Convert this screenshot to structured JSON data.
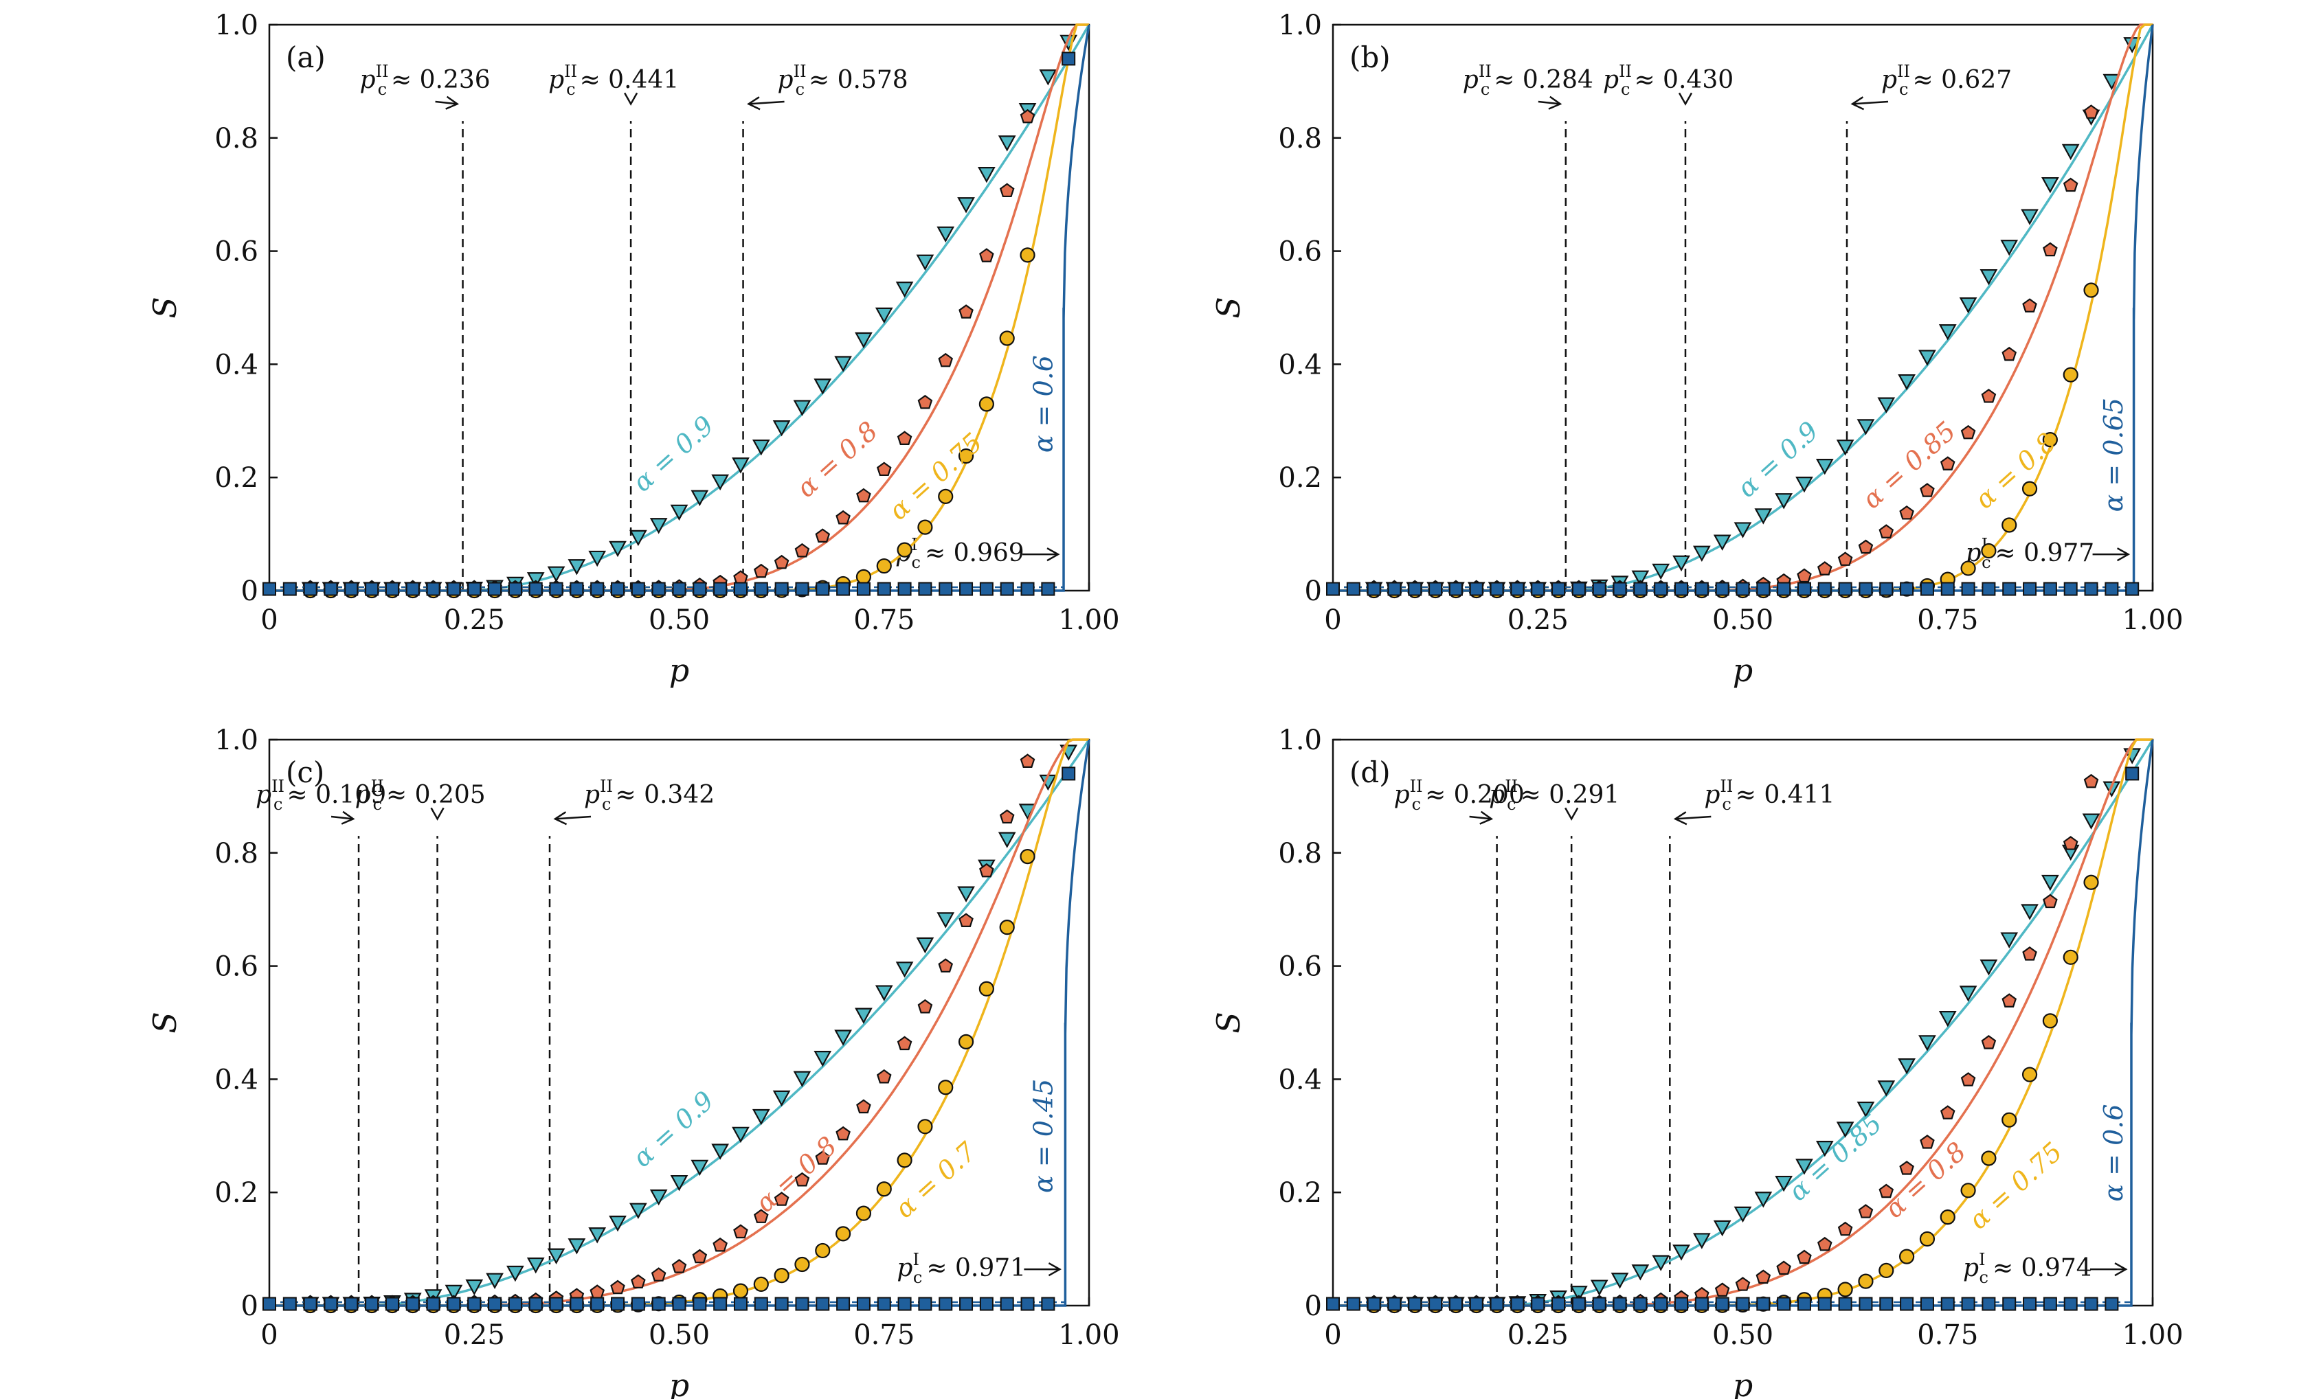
{
  "colors": {
    "s09": "#4fb8c4",
    "s08": "#e4714f",
    "s07": "#efb51c",
    "s06": "#1f5f9c",
    "marker_edge": "#111111",
    "axis": "#111111"
  },
  "chart_data": [
    {
      "type": "line",
      "panel": "(a)",
      "xlabel": "p",
      "ylabel": "S",
      "xlim": [
        0,
        1
      ],
      "ylim": [
        0,
        1
      ],
      "xticks": [
        "0",
        "0.25",
        "0.50",
        "0.75",
        "1.00"
      ],
      "yticks": [
        "0",
        "0.2",
        "0.4",
        "0.6",
        "0.8",
        "1.0"
      ],
      "thresholds": [
        {
          "label": "≈ 0.236",
          "p": 0.236
        },
        {
          "label": "≈ 0.441",
          "p": 0.441
        },
        {
          "label": "≈ 0.578",
          "p": 0.578
        }
      ],
      "first_order": {
        "label": "≈ 0.969",
        "p": 0.969
      },
      "series": [
        {
          "name": "α = 0.9",
          "alpha": 0.9,
          "marker": "triangle",
          "color_key": "s09",
          "pc": 0.236,
          "steep": 0,
          "points_start": 0.05,
          "points_end": 0.975,
          "label_p": 0.5,
          "label_s": 0.23
        },
        {
          "name": "α = 0.8",
          "alpha": 0.8,
          "marker": "pentagon",
          "color_key": "s08",
          "pc": 0.441,
          "steep": 0.6,
          "points_start": 0.05,
          "points_end": 0.93,
          "label_p": 0.7,
          "label_s": 0.22
        },
        {
          "name": "α = 0.75",
          "alpha": 0.75,
          "marker": "circle",
          "color_key": "s07",
          "pc": 0.578,
          "steep": 1.0,
          "points_start": 0.05,
          "points_end": 0.93,
          "label_p": 0.82,
          "label_s": 0.19
        },
        {
          "name": "α = 0.6",
          "alpha": 0.6,
          "marker": "square",
          "color_key": "s06",
          "pc": 0.969,
          "steep": 3,
          "points_start": 0.0,
          "points_end": 0.975,
          "label_p": 0.955,
          "label_s": 0.33
        }
      ]
    },
    {
      "type": "line",
      "panel": "(b)",
      "xlabel": "p",
      "ylabel": "S",
      "xlim": [
        0,
        1
      ],
      "ylim": [
        0,
        1
      ],
      "xticks": [
        "0",
        "0.25",
        "0.50",
        "0.75",
        "1.00"
      ],
      "yticks": [
        "0",
        "0.2",
        "0.4",
        "0.6",
        "0.8",
        "1.0"
      ],
      "thresholds": [
        {
          "label": "≈ 0.284",
          "p": 0.284
        },
        {
          "label": "≈ 0.430",
          "p": 0.43
        },
        {
          "label": "≈ 0.627",
          "p": 0.627
        }
      ],
      "first_order": {
        "label": "≈ 0.977",
        "p": 0.977
      },
      "series": [
        {
          "name": "α = 0.9",
          "alpha": 0.9,
          "marker": "triangle",
          "color_key": "s09",
          "pc": 0.284,
          "steep": 0,
          "points_start": 0.05,
          "points_end": 0.975,
          "label_p": 0.55,
          "label_s": 0.22
        },
        {
          "name": "α = 0.85",
          "alpha": 0.85,
          "marker": "pentagon",
          "color_key": "s08",
          "pc": 0.43,
          "steep": 0.6,
          "points_start": 0.05,
          "points_end": 0.93,
          "label_p": 0.71,
          "label_s": 0.21
        },
        {
          "name": "α = 0.8",
          "alpha": 0.8,
          "marker": "circle",
          "color_key": "s07",
          "pc": 0.627,
          "steep": 1.0,
          "points_start": 0.05,
          "points_end": 0.93,
          "label_p": 0.84,
          "label_s": 0.2
        },
        {
          "name": "α = 0.65",
          "alpha": 0.65,
          "marker": "square",
          "color_key": "s06",
          "pc": 0.977,
          "steep": 3,
          "points_start": 0.0,
          "points_end": 0.975,
          "label_p": 0.963,
          "label_s": 0.24
        }
      ]
    },
    {
      "type": "line",
      "panel": "(c)",
      "xlabel": "p",
      "ylabel": "S",
      "xlim": [
        0,
        1
      ],
      "ylim": [
        0,
        1
      ],
      "xticks": [
        "0",
        "0.25",
        "0.50",
        "0.75",
        "1.00"
      ],
      "yticks": [
        "0",
        "0.2",
        "0.4",
        "0.6",
        "0.8",
        "1.0"
      ],
      "thresholds": [
        {
          "label": "≈ 0.109",
          "p": 0.109
        },
        {
          "label": "≈ 0.205",
          "p": 0.205
        },
        {
          "label": "≈ 0.342",
          "p": 0.342
        }
      ],
      "first_order": {
        "label": "≈ 0.971",
        "p": 0.971
      },
      "series": [
        {
          "name": "α = 0.9",
          "alpha": 0.9,
          "marker": "triangle",
          "color_key": "s09",
          "pc": 0.109,
          "steep": 0,
          "points_start": 0.05,
          "points_end": 0.975,
          "label_p": 0.5,
          "label_s": 0.3
        },
        {
          "name": "α = 0.8",
          "alpha": 0.8,
          "marker": "pentagon",
          "color_key": "s08",
          "pc": 0.205,
          "steep": 0.6,
          "points_start": 0.05,
          "points_end": 0.93,
          "label_p": 0.65,
          "label_s": 0.22
        },
        {
          "name": "α = 0.7",
          "alpha": 0.7,
          "marker": "circle",
          "color_key": "s07",
          "pc": 0.342,
          "steep": 1.0,
          "points_start": 0.05,
          "points_end": 0.93,
          "label_p": 0.82,
          "label_s": 0.21
        },
        {
          "name": "α = 0.45",
          "alpha": 0.45,
          "marker": "square",
          "color_key": "s06",
          "pc": 0.971,
          "steep": 3,
          "points_start": 0.0,
          "points_end": 0.975,
          "label_p": 0.955,
          "label_s": 0.3
        }
      ]
    },
    {
      "type": "line",
      "panel": "(d)",
      "xlabel": "p",
      "ylabel": "S",
      "xlim": [
        0,
        1
      ],
      "ylim": [
        0,
        1
      ],
      "xticks": [
        "0",
        "0.25",
        "0.50",
        "0.75",
        "1.00"
      ],
      "yticks": [
        "0",
        "0.2",
        "0.4",
        "0.6",
        "0.8",
        "1.0"
      ],
      "thresholds": [
        {
          "label": "≈ 0.200",
          "p": 0.2
        },
        {
          "label": "≈ 0.291",
          "p": 0.291
        },
        {
          "label": "≈ 0.411",
          "p": 0.411
        }
      ],
      "first_order": {
        "label": "≈ 0.974",
        "p": 0.974
      },
      "series": [
        {
          "name": "α = 0.85",
          "alpha": 0.85,
          "marker": "triangle",
          "color_key": "s09",
          "pc": 0.2,
          "steep": 0,
          "points_start": 0.05,
          "points_end": 0.975,
          "label_p": 0.62,
          "label_s": 0.25
        },
        {
          "name": "α = 0.8",
          "alpha": 0.8,
          "marker": "pentagon",
          "color_key": "s08",
          "pc": 0.291,
          "steep": 0.6,
          "points_start": 0.05,
          "points_end": 0.93,
          "label_p": 0.73,
          "label_s": 0.21
        },
        {
          "name": "α = 0.75",
          "alpha": 0.75,
          "marker": "circle",
          "color_key": "s07",
          "pc": 0.411,
          "steep": 1.0,
          "points_start": 0.05,
          "points_end": 0.93,
          "label_p": 0.84,
          "label_s": 0.2
        },
        {
          "name": "α = 0.6",
          "alpha": 0.6,
          "marker": "square",
          "color_key": "s06",
          "pc": 0.974,
          "steep": 3,
          "points_start": 0.0,
          "points_end": 0.975,
          "label_p": 0.963,
          "label_s": 0.27
        }
      ]
    }
  ]
}
